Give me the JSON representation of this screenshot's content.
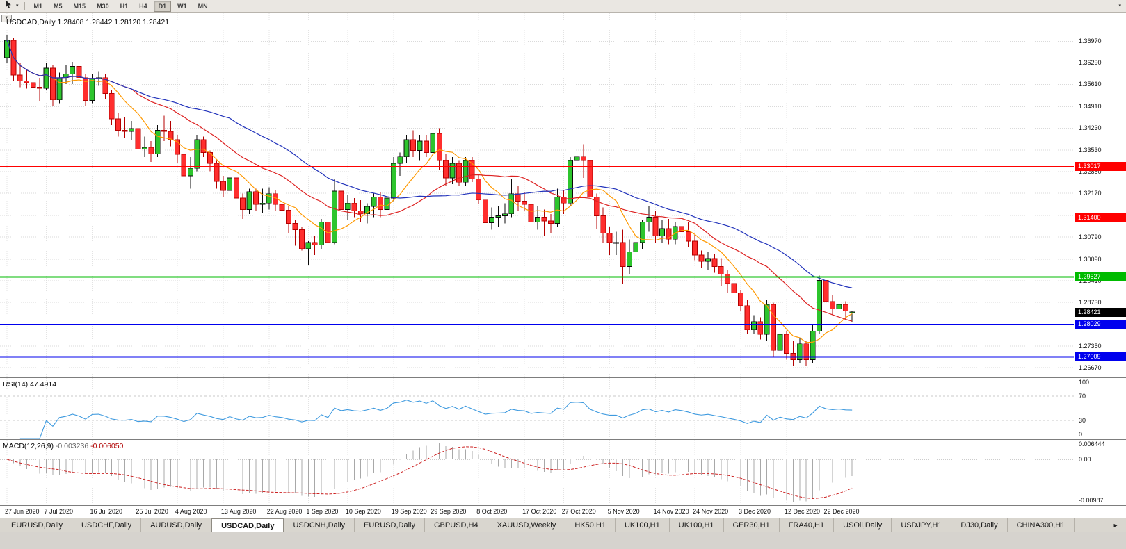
{
  "toolbar": {
    "cursor_tool_icon": "cursor-arrow",
    "dropdown_icon": "▾",
    "overflow_icon": "▾",
    "timeframes": [
      "M1",
      "M5",
      "M15",
      "M30",
      "H1",
      "H4",
      "D1",
      "W1",
      "MN"
    ],
    "active_timeframe": "D1"
  },
  "chart": {
    "title": "USDCAD,Daily",
    "ohlc": "1.28408 1.28442 1.28120 1.28421",
    "corner_dropdown_icon": "▼",
    "current_price": 1.28421,
    "colors": {
      "bull_fill": "#2DC52D",
      "bull_border": "#0A0A0A",
      "bear_fill": "#FF2E2E",
      "bear_border": "#B40000",
      "grid": "#DADADA",
      "background": "#FFFFFF",
      "current_price_tag": "#000000"
    }
  },
  "panes": {
    "rsi": {
      "name": "RSI(14)",
      "value": "47.4914",
      "axis": [
        "100",
        "70",
        "30",
        "0"
      ]
    },
    "macd": {
      "name": "MACD(12,26,9)",
      "value_main": "-0.003236",
      "value_signal": "-0.006050",
      "axis_top": "0.006444",
      "axis_zero": "0.00",
      "axis_bottom": "-0.00987"
    }
  },
  "chart_data": {
    "type": "candlestick",
    "symbol": "USDCAD",
    "timeframe": "Daily",
    "title": "USDCAD,Daily",
    "current_bar": {
      "open": 1.28408,
      "high": 1.28442,
      "low": 1.2812,
      "close": 1.28421
    },
    "y_axis_ticks": [
      1.3697,
      1.3629,
      1.3561,
      1.3491,
      1.3423,
      1.3353,
      1.3285,
      1.3217,
      1.3147,
      1.3079,
      1.3009,
      1.2941,
      1.2873,
      1.2803,
      1.2735,
      1.2667
    ],
    "x_axis_labels": [
      {
        "t": "27 Jun 2020",
        "i": 0
      },
      {
        "t": "7 Jul 2020",
        "i": 6
      },
      {
        "t": "16 Jul 2020",
        "i": 13
      },
      {
        "t": "25 Jul 2020",
        "i": 20
      },
      {
        "t": "4 Aug 2020",
        "i": 26
      },
      {
        "t": "13 Aug 2020",
        "i": 33
      },
      {
        "t": "22 Aug 2020",
        "i": 40
      },
      {
        "t": "1 Sep 2020",
        "i": 46
      },
      {
        "t": "10 Sep 2020",
        "i": 52
      },
      {
        "t": "19 Sep 2020",
        "i": 59
      },
      {
        "t": "29 Sep 2020",
        "i": 65
      },
      {
        "t": "8 Oct 2020",
        "i": 72
      },
      {
        "t": "17 Oct 2020",
        "i": 79
      },
      {
        "t": "27 Oct 2020",
        "i": 85
      },
      {
        "t": "5 Nov 2020",
        "i": 92
      },
      {
        "t": "14 Nov 2020",
        "i": 99
      },
      {
        "t": "24 Nov 2020",
        "i": 105
      },
      {
        "t": "3 Dec 2020",
        "i": 112
      },
      {
        "t": "12 Dec 2020",
        "i": 119
      },
      {
        "t": "22 Dec 2020",
        "i": 125
      }
    ],
    "horizontal_levels": [
      {
        "price": 1.33017,
        "color": "#FF0000",
        "width": 1
      },
      {
        "price": 1.314,
        "color": "#FF0000",
        "width": 1
      },
      {
        "price": 1.29527,
        "color": "#00BB00",
        "width": 2
      },
      {
        "price": 1.28029,
        "color": "#0000EE",
        "width": 2
      },
      {
        "price": 1.27009,
        "color": "#0000EE",
        "width": 2
      }
    ],
    "moving_averages": [
      {
        "period": 8,
        "color": "#FF9900"
      },
      {
        "period": 20,
        "color": "#DD2222"
      },
      {
        "period": 35,
        "color": "#2233BB"
      }
    ],
    "rsi": {
      "period": 14,
      "current": 47.4914,
      "levels": [
        70,
        30
      ],
      "range": [
        0,
        100
      ],
      "color": "#3E9ADF"
    },
    "macd": {
      "fast": 12,
      "slow": 26,
      "signal": 9,
      "current_main": -0.003236,
      "current_signal": -0.00605,
      "histogram_color": "#A8A8A8",
      "signal_color": "#CC2222"
    },
    "candles": [
      [
        "2020-06-29",
        1.3645,
        1.3715,
        1.363,
        1.37
      ],
      [
        "2020-06-30",
        1.37,
        1.3708,
        1.3572,
        1.359
      ],
      [
        "2020-07-01",
        1.359,
        1.3628,
        1.3552,
        1.3572
      ],
      [
        "2020-07-02",
        1.3572,
        1.361,
        1.3548,
        1.3566
      ],
      [
        "2020-07-03",
        1.3566,
        1.3582,
        1.354,
        1.3552
      ],
      [
        "2020-07-06",
        1.3552,
        1.3582,
        1.3508,
        1.3548
      ],
      [
        "2020-07-07",
        1.3548,
        1.3628,
        1.3542,
        1.3612
      ],
      [
        "2020-07-08",
        1.3612,
        1.3622,
        1.3492,
        1.3512
      ],
      [
        "2020-07-09",
        1.3512,
        1.3598,
        1.3502,
        1.3582
      ],
      [
        "2020-07-10",
        1.3582,
        1.3622,
        1.3562,
        1.3594
      ],
      [
        "2020-07-13",
        1.3594,
        1.3632,
        1.3562,
        1.3618
      ],
      [
        "2020-07-14",
        1.3618,
        1.3628,
        1.3556,
        1.3582
      ],
      [
        "2020-07-15",
        1.3582,
        1.3592,
        1.3492,
        1.351
      ],
      [
        "2020-07-16",
        1.351,
        1.3592,
        1.3502,
        1.3578
      ],
      [
        "2020-07-17",
        1.3578,
        1.3602,
        1.3556,
        1.3582
      ],
      [
        "2020-07-20",
        1.3582,
        1.3592,
        1.3516,
        1.3532
      ],
      [
        "2020-07-21",
        1.3532,
        1.3542,
        1.3432,
        1.3452
      ],
      [
        "2020-07-22",
        1.3452,
        1.3472,
        1.3396,
        1.3416
      ],
      [
        "2020-07-23",
        1.3416,
        1.3456,
        1.3392,
        1.3412
      ],
      [
        "2020-07-24",
        1.3412,
        1.3446,
        1.3386,
        1.3422
      ],
      [
        "2020-07-27",
        1.3422,
        1.3432,
        1.3332,
        1.3356
      ],
      [
        "2020-07-28",
        1.3356,
        1.3396,
        1.3332,
        1.3362
      ],
      [
        "2020-07-29",
        1.3362,
        1.3382,
        1.3316,
        1.3342
      ],
      [
        "2020-07-30",
        1.3342,
        1.3432,
        1.3332,
        1.3416
      ],
      [
        "2020-07-31",
        1.3416,
        1.3462,
        1.3382,
        1.3412
      ],
      [
        "2020-08-03",
        1.3412,
        1.3446,
        1.3366,
        1.3386
      ],
      [
        "2020-08-04",
        1.3386,
        1.3402,
        1.3312,
        1.334
      ],
      [
        "2020-08-05",
        1.334,
        1.3346,
        1.3246,
        1.3272
      ],
      [
        "2020-08-06",
        1.3272,
        1.3332,
        1.3232,
        1.3296
      ],
      [
        "2020-08-07",
        1.3296,
        1.3402,
        1.3286,
        1.3386
      ],
      [
        "2020-08-10",
        1.3386,
        1.3396,
        1.3332,
        1.3346
      ],
      [
        "2020-08-11",
        1.3346,
        1.3352,
        1.3286,
        1.3312
      ],
      [
        "2020-08-12",
        1.3312,
        1.3322,
        1.3232,
        1.3254
      ],
      [
        "2020-08-13",
        1.3254,
        1.3272,
        1.3206,
        1.3226
      ],
      [
        "2020-08-14",
        1.3226,
        1.3286,
        1.3212,
        1.3266
      ],
      [
        "2020-08-17",
        1.3266,
        1.3272,
        1.3182,
        1.3202
      ],
      [
        "2020-08-18",
        1.3202,
        1.3216,
        1.3136,
        1.3166
      ],
      [
        "2020-08-19",
        1.3166,
        1.3232,
        1.3152,
        1.3222
      ],
      [
        "2020-08-20",
        1.3222,
        1.3232,
        1.3162,
        1.3182
      ],
      [
        "2020-08-21",
        1.3182,
        1.3232,
        1.3156,
        1.3186
      ],
      [
        "2020-08-24",
        1.3186,
        1.3236,
        1.3166,
        1.3216
      ],
      [
        "2020-08-25",
        1.3216,
        1.3226,
        1.3162,
        1.3182
      ],
      [
        "2020-08-26",
        1.3182,
        1.3202,
        1.3146,
        1.3164
      ],
      [
        "2020-08-27",
        1.3164,
        1.3176,
        1.3092,
        1.3122
      ],
      [
        "2020-08-28",
        1.3122,
        1.3132,
        1.3052,
        1.3102
      ],
      [
        "2020-08-31",
        1.3102,
        1.3112,
        1.3036,
        1.3042
      ],
      [
        "2020-09-01",
        1.3042,
        1.3066,
        1.2992,
        1.3062
      ],
      [
        "2020-09-02",
        1.3062,
        1.3082,
        1.3022,
        1.3054
      ],
      [
        "2020-09-03",
        1.3054,
        1.3136,
        1.3042,
        1.3126
      ],
      [
        "2020-09-04",
        1.3126,
        1.3142,
        1.3046,
        1.3062
      ],
      [
        "2020-09-08",
        1.3062,
        1.3262,
        1.3056,
        1.3224
      ],
      [
        "2020-09-09",
        1.3224,
        1.3242,
        1.3152,
        1.3166
      ],
      [
        "2020-09-10",
        1.3166,
        1.3212,
        1.3132,
        1.3186
      ],
      [
        "2020-09-11",
        1.3186,
        1.3202,
        1.3142,
        1.3162
      ],
      [
        "2020-09-14",
        1.3162,
        1.3196,
        1.3126,
        1.3152
      ],
      [
        "2020-09-15",
        1.3152,
        1.3186,
        1.3122,
        1.3176
      ],
      [
        "2020-09-16",
        1.3176,
        1.3216,
        1.3142,
        1.3206
      ],
      [
        "2020-09-17",
        1.3206,
        1.3222,
        1.3142,
        1.3166
      ],
      [
        "2020-09-18",
        1.3166,
        1.3216,
        1.3152,
        1.3202
      ],
      [
        "2020-09-21",
        1.3202,
        1.3332,
        1.3192,
        1.3312
      ],
      [
        "2020-09-22",
        1.3312,
        1.3346,
        1.3272,
        1.3332
      ],
      [
        "2020-09-23",
        1.3332,
        1.3402,
        1.3312,
        1.3386
      ],
      [
        "2020-09-24",
        1.3386,
        1.3416,
        1.3332,
        1.3352
      ],
      [
        "2020-09-25",
        1.3352,
        1.3402,
        1.3322,
        1.3382
      ],
      [
        "2020-09-28",
        1.3382,
        1.3402,
        1.3332,
        1.3346
      ],
      [
        "2020-09-29",
        1.3346,
        1.3442,
        1.3332,
        1.3406
      ],
      [
        "2020-09-30",
        1.3406,
        1.3422,
        1.3292,
        1.3322
      ],
      [
        "2020-10-01",
        1.3322,
        1.3342,
        1.3242,
        1.3266
      ],
      [
        "2020-10-02",
        1.3266,
        1.3332,
        1.3246,
        1.3312
      ],
      [
        "2020-10-05",
        1.3312,
        1.3322,
        1.3242,
        1.3252
      ],
      [
        "2020-10-06",
        1.3252,
        1.3332,
        1.3242,
        1.3322
      ],
      [
        "2020-10-07",
        1.3322,
        1.3332,
        1.3252,
        1.3262
      ],
      [
        "2020-10-08",
        1.3262,
        1.3276,
        1.3182,
        1.3196
      ],
      [
        "2020-10-09",
        1.3196,
        1.3206,
        1.3102,
        1.3124
      ],
      [
        "2020-10-12",
        1.3124,
        1.3172,
        1.3102,
        1.3142
      ],
      [
        "2020-10-13",
        1.3142,
        1.3176,
        1.3112,
        1.3146
      ],
      [
        "2020-10-14",
        1.3146,
        1.3186,
        1.3122,
        1.3152
      ],
      [
        "2020-10-15",
        1.3152,
        1.3262,
        1.3142,
        1.3216
      ],
      [
        "2020-10-16",
        1.3216,
        1.3242,
        1.3162,
        1.3192
      ],
      [
        "2020-10-19",
        1.3192,
        1.3222,
        1.3162,
        1.3182
      ],
      [
        "2020-10-20",
        1.3182,
        1.3196,
        1.3106,
        1.3126
      ],
      [
        "2020-10-21",
        1.3126,
        1.3176,
        1.3102,
        1.3142
      ],
      [
        "2020-10-22",
        1.3142,
        1.3166,
        1.3082,
        1.313
      ],
      [
        "2020-10-23",
        1.313,
        1.3152,
        1.3092,
        1.3122
      ],
      [
        "2020-10-26",
        1.3122,
        1.3232,
        1.3112,
        1.3206
      ],
      [
        "2020-10-27",
        1.3206,
        1.3226,
        1.3152,
        1.3186
      ],
      [
        "2020-10-28",
        1.3186,
        1.3332,
        1.3176,
        1.3322
      ],
      [
        "2020-10-29",
        1.3322,
        1.3392,
        1.3292,
        1.3332
      ],
      [
        "2020-10-30",
        1.3332,
        1.3372,
        1.3266,
        1.3322
      ],
      [
        "2020-11-02",
        1.3322,
        1.3332,
        1.3162,
        1.3206
      ],
      [
        "2020-11-03",
        1.3206,
        1.3216,
        1.3106,
        1.3146
      ],
      [
        "2020-11-04",
        1.3146,
        1.3172,
        1.3062,
        1.3092
      ],
      [
        "2020-11-05",
        1.3092,
        1.3112,
        1.3022,
        1.3062
      ],
      [
        "2020-11-06",
        1.3062,
        1.3096,
        1.3022,
        1.3062
      ],
      [
        "2020-11-09",
        1.3062,
        1.3102,
        1.2932,
        1.2986
      ],
      [
        "2020-11-10",
        1.2986,
        1.3072,
        1.2962,
        1.3032
      ],
      [
        "2020-11-11",
        1.3032,
        1.3066,
        1.2986,
        1.3062
      ],
      [
        "2020-11-12",
        1.3062,
        1.3132,
        1.3042,
        1.3126
      ],
      [
        "2020-11-13",
        1.3126,
        1.3176,
        1.3096,
        1.3142
      ],
      [
        "2020-11-16",
        1.3142,
        1.3162,
        1.3062,
        1.3082
      ],
      [
        "2020-11-17",
        1.3082,
        1.3132,
        1.3062,
        1.3106
      ],
      [
        "2020-11-18",
        1.3106,
        1.3136,
        1.3056,
        1.3072
      ],
      [
        "2020-11-19",
        1.3072,
        1.3126,
        1.3056,
        1.3112
      ],
      [
        "2020-11-20",
        1.3112,
        1.3122,
        1.3062,
        1.3096
      ],
      [
        "2020-11-23",
        1.3096,
        1.3126,
        1.3046,
        1.3066
      ],
      [
        "2020-11-24",
        1.3066,
        1.3086,
        1.3006,
        1.3022
      ],
      [
        "2020-11-25",
        1.3022,
        1.3036,
        1.2982,
        1.3002
      ],
      [
        "2020-11-26",
        1.3002,
        1.3032,
        1.2976,
        1.3012
      ],
      [
        "2020-11-27",
        1.3012,
        1.3026,
        1.2966,
        1.2986
      ],
      [
        "2020-11-30",
        1.2986,
        1.3012,
        1.2926,
        1.2962
      ],
      [
        "2020-12-01",
        1.2962,
        1.2976,
        1.2902,
        1.2932
      ],
      [
        "2020-12-02",
        1.2932,
        1.2956,
        1.2882,
        1.2902
      ],
      [
        "2020-12-03",
        1.2902,
        1.2912,
        1.2846,
        1.2862
      ],
      [
        "2020-12-04",
        1.2862,
        1.2882,
        1.2772,
        1.2786
      ],
      [
        "2020-12-07",
        1.2786,
        1.2832,
        1.2772,
        1.2812
      ],
      [
        "2020-12-08",
        1.2812,
        1.2826,
        1.2756,
        1.2772
      ],
      [
        "2020-12-09",
        1.2772,
        1.2882,
        1.2752,
        1.2866
      ],
      [
        "2020-12-10",
        1.2866,
        1.2872,
        1.2702,
        1.2722
      ],
      [
        "2020-12-11",
        1.2722,
        1.2792,
        1.2692,
        1.2772
      ],
      [
        "2020-12-14",
        1.2772,
        1.2782,
        1.2692,
        1.2712
      ],
      [
        "2020-12-15",
        1.2712,
        1.2752,
        1.2672,
        1.2692
      ],
      [
        "2020-12-16",
        1.2692,
        1.2762,
        1.2682,
        1.2742
      ],
      [
        "2020-12-17",
        1.2742,
        1.2752,
        1.2672,
        1.2692
      ],
      [
        "2020-12-18",
        1.2692,
        1.2802,
        1.2682,
        1.2782
      ],
      [
        "2020-12-21",
        1.2782,
        1.2957,
        1.2772,
        1.2942
      ],
      [
        "2020-12-22",
        1.2942,
        1.2952,
        1.2856,
        1.2876
      ],
      [
        "2020-12-23",
        1.2876,
        1.2896,
        1.2832,
        1.2852
      ],
      [
        "2020-12-24",
        1.2852,
        1.2882,
        1.2836,
        1.2866
      ],
      [
        "2020-12-28",
        1.2866,
        1.2876,
        1.2816,
        1.2846
      ],
      [
        "2020-12-29",
        1.28408,
        1.28442,
        1.2812,
        1.28421
      ]
    ]
  },
  "tabbar": {
    "tabs": [
      "EURUSD,Daily",
      "USDCHF,Daily",
      "AUDUSD,Daily",
      "USDCAD,Daily",
      "USDCNH,Daily",
      "EURUSD,Daily",
      "GBPUSD,H4",
      "XAUUSD,Weekly",
      "HK50,H1",
      "UK100,H1",
      "UK100,H1",
      "GER30,H1",
      "FRA40,H1",
      "USOil,Daily",
      "USDJPY,H1",
      "DJ30,Daily",
      "CHINA300,H1"
    ],
    "active_index": 3,
    "scroll_right_icon": "▸"
  }
}
